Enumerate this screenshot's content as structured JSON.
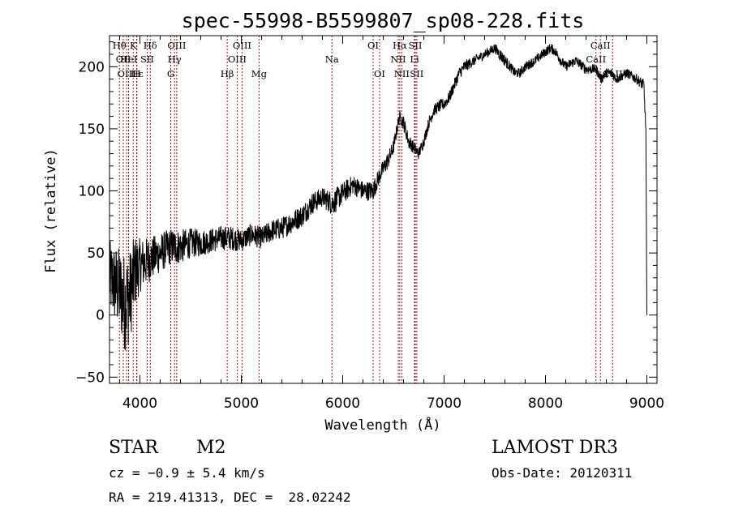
{
  "chart_data": {
    "type": "line",
    "title": "spec-55998-B5599807_sp08-228.fits",
    "xlabel": "Wavelength (Å)",
    "ylabel": "Flux (relative)",
    "xlim": [
      3700,
      9100
    ],
    "ylim": [
      -55,
      225
    ],
    "xticks": [
      4000,
      5000,
      6000,
      7000,
      8000,
      9000
    ],
    "yticks": [
      -50,
      0,
      50,
      100,
      150,
      200
    ],
    "series": [
      {
        "name": "flux",
        "color": "#000000",
        "x": [
          3700,
          3800,
          3850,
          3900,
          3950,
          4000,
          4100,
          4200,
          4300,
          4400,
          4500,
          4600,
          4700,
          4800,
          4900,
          5000,
          5100,
          5200,
          5300,
          5400,
          5500,
          5600,
          5700,
          5800,
          5900,
          6000,
          6100,
          6200,
          6300,
          6350,
          6400,
          6450,
          6500,
          6560,
          6600,
          6650,
          6700,
          6750,
          6800,
          6850,
          6900,
          6950,
          7000,
          7050,
          7100,
          7150,
          7200,
          7300,
          7400,
          7500,
          7550,
          7600,
          7650,
          7700,
          7750,
          7800,
          7900,
          8000,
          8050,
          8100,
          8150,
          8200,
          8300,
          8400,
          8500,
          8550,
          8600,
          8650,
          8700,
          8800,
          8900,
          8970,
          8990,
          9000
        ],
        "y": [
          30,
          20,
          10,
          15,
          35,
          40,
          45,
          50,
          55,
          55,
          58,
          58,
          60,
          62,
          62,
          60,
          65,
          62,
          68,
          70,
          75,
          80,
          90,
          95,
          90,
          98,
          105,
          100,
          100,
          110,
          118,
          125,
          135,
          160,
          155,
          140,
          135,
          130,
          140,
          155,
          165,
          168,
          170,
          175,
          185,
          195,
          200,
          205,
          210,
          215,
          210,
          205,
          200,
          195,
          195,
          200,
          205,
          212,
          215,
          212,
          205,
          200,
          205,
          198,
          198,
          190,
          195,
          195,
          190,
          195,
          190,
          185,
          150,
          0
        ],
        "noise_sigma": [
          30,
          35,
          40,
          38,
          30,
          22,
          18,
          16,
          15,
          14,
          12,
          11,
          10,
          10,
          10,
          9,
          9,
          9,
          9,
          9,
          9,
          9,
          9,
          8,
          10,
          9,
          8,
          8,
          8,
          7,
          7,
          7,
          6,
          5,
          6,
          6,
          5,
          5,
          5,
          5,
          5,
          5,
          5,
          5,
          5,
          5,
          5,
          4,
          4,
          4,
          5,
          5,
          4,
          4,
          4,
          4,
          4,
          4,
          4,
          4,
          4,
          4,
          4,
          4,
          4,
          4,
          4,
          4,
          4,
          4,
          4,
          5,
          5,
          0
        ]
      }
    ],
    "spectral_lines": [
      {
        "wl": 3798,
        "label": "Hθ",
        "row": 1,
        "color": "#8b0000"
      },
      {
        "wl": 3836,
        "label": "OII",
        "row": 2,
        "color": "#8b0000"
      },
      {
        "wl": 3869,
        "label": "OIII",
        "row": 3,
        "color": "#8b0000"
      },
      {
        "wl": 3889,
        "label": "HeI",
        "row": 2,
        "color": "#8b0000"
      },
      {
        "wl": 3934,
        "label": "K",
        "row": 1,
        "color": "#8b0000"
      },
      {
        "wl": 3970,
        "label": "Hε",
        "row": 3,
        "color": "#8b0000"
      },
      {
        "wl": 3968,
        "label": "H",
        "row": 3,
        "color": "#8b0000"
      },
      {
        "wl": 4072,
        "label": "SII",
        "row": 2,
        "color": "#8b0000"
      },
      {
        "wl": 4102,
        "label": "Hδ",
        "row": 1,
        "color": "#8b0000"
      },
      {
        "wl": 4304,
        "label": "G",
        "row": 3,
        "color": "#8b0000"
      },
      {
        "wl": 4341,
        "label": "Hγ",
        "row": 2,
        "color": "#8b0000"
      },
      {
        "wl": 4363,
        "label": "OIII",
        "row": 1,
        "color": "#8b0000"
      },
      {
        "wl": 4861,
        "label": "Hβ",
        "row": 3,
        "color": "#8b0000"
      },
      {
        "wl": 4959,
        "label": "OIII",
        "row": 2,
        "color": "#8b0000"
      },
      {
        "wl": 5007,
        "label": "OIII",
        "row": 1,
        "color": "#8b0000"
      },
      {
        "wl": 5175,
        "label": "Mg",
        "row": 3,
        "color": "#8b0000"
      },
      {
        "wl": 5894,
        "label": "Na",
        "row": 2,
        "color": "#8b0000"
      },
      {
        "wl": 6300,
        "label": "OI",
        "row": 1,
        "color": "#8b0000"
      },
      {
        "wl": 6364,
        "label": "OI",
        "row": 3,
        "color": "#8b0000"
      },
      {
        "wl": 6548,
        "label": "NII",
        "row": 2,
        "color": "#8b0000"
      },
      {
        "wl": 6563,
        "label": "Hα",
        "row": 1,
        "color": "#8b0000"
      },
      {
        "wl": 6583,
        "label": "NII",
        "row": 3,
        "color": "#8b0000"
      },
      {
        "wl": 6708,
        "label": "Li",
        "row": 2,
        "color": "#8b0000"
      },
      {
        "wl": 6716,
        "label": "SII",
        "row": 1,
        "color": "#8b0000"
      },
      {
        "wl": 6731,
        "label": "SII",
        "row": 3,
        "color": "#8b0000"
      },
      {
        "wl": 8498,
        "label": "CaII",
        "row": 2,
        "color": "#8b0000"
      },
      {
        "wl": 8542,
        "label": "CaII",
        "row": 1,
        "color": "#8b0000"
      },
      {
        "wl": 8662,
        "label": "CaII",
        "row": 3,
        "color": "#8b0000"
      }
    ]
  },
  "info": {
    "class": "STAR",
    "subclass": "M2",
    "survey": "LAMOST DR3",
    "cz": "cz = −0.9 ± 5.4 km/s",
    "obs_date": "Obs-Date: 20120311",
    "coords": "RA = 219.41313, DEC =  28.02242"
  }
}
